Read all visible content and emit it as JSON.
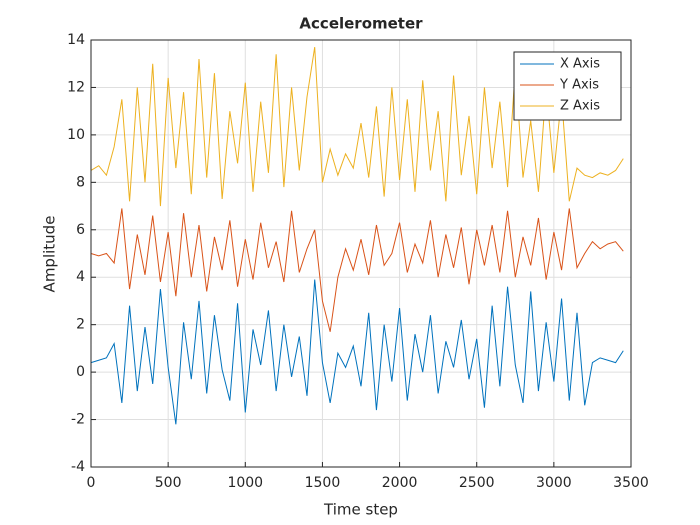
{
  "chart_data": {
    "type": "line",
    "title": "Accelerometer",
    "x_label": "Time step",
    "y_label": "Amplitude",
    "x": [
      0,
      50,
      100,
      150,
      200,
      250,
      300,
      350,
      400,
      450,
      500,
      550,
      600,
      650,
      700,
      750,
      800,
      850,
      900,
      950,
      1000,
      1050,
      1100,
      1150,
      1200,
      1250,
      1300,
      1350,
      1400,
      1450,
      1500,
      1550,
      1600,
      1650,
      1700,
      1750,
      1800,
      1850,
      1900,
      1950,
      2000,
      2050,
      2100,
      2150,
      2200,
      2250,
      2300,
      2350,
      2400,
      2450,
      2500,
      2550,
      2600,
      2650,
      2700,
      2750,
      2800,
      2850,
      2900,
      2950,
      3000,
      3050,
      3100,
      3150,
      3200,
      3250,
      3300,
      3350,
      3400,
      3450
    ],
    "series": [
      {
        "name": "X Axis",
        "color": "#0072bd",
        "values": [
          0.4,
          0.5,
          0.6,
          1.2,
          -1.3,
          2.8,
          -0.8,
          1.9,
          -0.5,
          3.5,
          0.2,
          -2.2,
          2.1,
          -0.3,
          3.0,
          -0.9,
          2.4,
          0.1,
          -1.2,
          2.9,
          -1.7,
          1.8,
          0.3,
          2.6,
          -0.8,
          2.0,
          -0.2,
          1.5,
          -1.0,
          3.9,
          0.4,
          -1.3,
          0.8,
          0.2,
          1.1,
          -0.6,
          2.5,
          -1.6,
          2.0,
          -0.4,
          2.7,
          -1.2,
          1.6,
          0.0,
          2.4,
          -0.9,
          1.3,
          0.2,
          2.2,
          -0.3,
          1.4,
          -1.5,
          2.8,
          -0.6,
          3.6,
          0.3,
          -1.3,
          3.4,
          -0.8,
          2.1,
          -0.4,
          3.1,
          -1.2,
          2.5,
          -1.4,
          0.4,
          0.6,
          0.5,
          0.4,
          0.9
        ]
      },
      {
        "name": "Y Axis",
        "color": "#d95319",
        "values": [
          5.0,
          4.9,
          5.0,
          4.6,
          6.9,
          3.5,
          5.8,
          4.1,
          6.6,
          3.8,
          5.9,
          3.2,
          6.7,
          4.0,
          6.2,
          3.4,
          5.7,
          4.3,
          6.4,
          3.6,
          5.6,
          3.9,
          6.3,
          4.4,
          5.5,
          3.8,
          6.8,
          4.2,
          5.2,
          6.0,
          3.0,
          1.7,
          4.0,
          5.2,
          4.3,
          5.6,
          4.1,
          6.2,
          4.5,
          5.0,
          6.3,
          4.2,
          5.4,
          4.6,
          6.4,
          4.0,
          5.8,
          4.4,
          6.1,
          3.7,
          6.0,
          4.5,
          6.2,
          4.2,
          6.8,
          4.0,
          5.7,
          4.5,
          6.5,
          3.9,
          5.9,
          4.3,
          6.9,
          4.4,
          5.0,
          5.5,
          5.2,
          5.4,
          5.5,
          5.1
        ]
      },
      {
        "name": "Z Axis",
        "color": "#edb120",
        "values": [
          8.5,
          8.7,
          8.3,
          9.5,
          11.5,
          7.2,
          12.0,
          8.0,
          13.0,
          7.0,
          12.4,
          8.6,
          11.8,
          7.5,
          13.2,
          8.2,
          12.6,
          7.3,
          11.0,
          8.8,
          12.2,
          7.6,
          11.4,
          8.4,
          13.4,
          7.8,
          12.0,
          8.5,
          11.6,
          13.7,
          8.0,
          9.4,
          8.3,
          9.2,
          8.6,
          10.5,
          8.2,
          11.2,
          7.4,
          12.0,
          8.1,
          11.5,
          7.6,
          12.3,
          8.5,
          11.0,
          7.2,
          12.5,
          8.3,
          10.8,
          7.5,
          12.0,
          8.6,
          11.4,
          7.8,
          12.8,
          8.2,
          10.6,
          7.6,
          12.0,
          8.4,
          11.6,
          7.2,
          8.6,
          8.3,
          8.2,
          8.4,
          8.3,
          8.5,
          9.0
        ]
      }
    ],
    "xlim": [
      0,
      3500
    ],
    "xticks": [
      0,
      500,
      1000,
      1500,
      2000,
      2500,
      3000,
      3500
    ],
    "ylim": [
      -4,
      14
    ],
    "yticks": [
      -4,
      -2,
      0,
      2,
      4,
      6,
      8,
      10,
      12,
      14
    ],
    "grid": true,
    "legend": "northeast"
  }
}
